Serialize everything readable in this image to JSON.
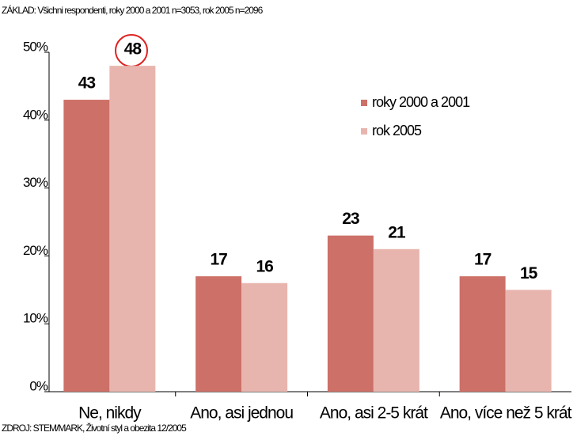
{
  "chart_data": {
    "type": "bar",
    "subtitle": "ZÁKLAD: Všichni respondenti, roky 2000 a 2001 n=3053, rok 2005 n=2096",
    "source": "ZDROJ: STEM/MARK, Životní styl a obezita 12/2005",
    "categories": [
      "Ne, nikdy",
      "Ano, asi jednou",
      "Ano, asi 2-5 krát",
      "Ano, více než 5 krát"
    ],
    "series": [
      {
        "name": "roky 2000 a 2001",
        "color": "#cc7068",
        "values": [
          43,
          17,
          23,
          17
        ]
      },
      {
        "name": "rok 2005",
        "color": "#e8b5ae",
        "values": [
          48,
          16,
          21,
          15
        ]
      }
    ],
    "ylim": [
      0,
      50
    ],
    "yticks": [
      {
        "value": 0,
        "label": "0%"
      },
      {
        "value": 10,
        "label": "10%"
      },
      {
        "value": 20,
        "label": "20%"
      },
      {
        "value": 30,
        "label": "30%"
      },
      {
        "value": 40,
        "label": "40%"
      },
      {
        "value": 50,
        "label": "50%"
      }
    ],
    "legend": "upper right"
  }
}
